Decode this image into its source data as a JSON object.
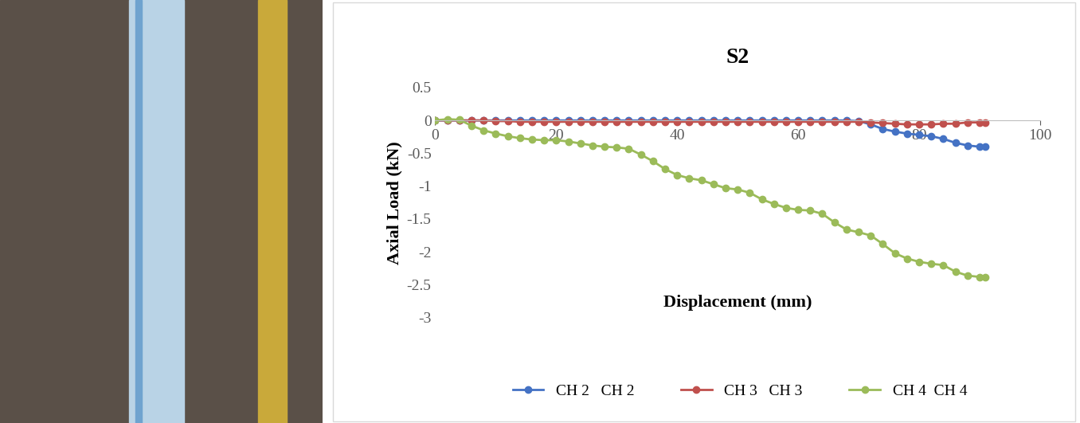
{
  "chart_data": {
    "type": "line",
    "title": "S2",
    "x_label": "Displacement (mm)",
    "y_label": "Axial Load (kN)",
    "x": [
      0,
      2,
      4,
      6,
      8,
      10,
      12,
      14,
      16,
      18,
      20,
      22,
      24,
      26,
      28,
      30,
      32,
      34,
      36,
      38,
      40,
      42,
      44,
      46,
      48,
      50,
      52,
      54,
      56,
      58,
      60,
      62,
      64,
      66,
      68,
      70,
      72,
      74,
      76,
      78,
      80,
      82,
      84,
      86,
      88,
      90,
      91
    ],
    "series": [
      {
        "name": "CH 2   CH 2",
        "color": "#4472C4",
        "marker": "circle",
        "values": [
          0,
          0,
          0,
          0,
          0,
          0,
          0,
          0,
          0,
          0,
          0,
          0,
          0,
          0,
          0,
          0,
          0,
          0,
          0,
          0,
          0,
          0,
          0,
          0,
          0,
          0,
          0,
          0,
          0,
          0,
          0,
          0,
          0,
          0,
          0,
          -0.01,
          -0.06,
          -0.13,
          -0.17,
          -0.2,
          -0.22,
          -0.24,
          -0.28,
          -0.34,
          -0.38,
          -0.4,
          -0.4
        ]
      },
      {
        "name": "CH 3   CH 3",
        "color": "#C0504D",
        "marker": "circle",
        "values": [
          0,
          0,
          0,
          0,
          0,
          -0.01,
          -0.01,
          -0.02,
          -0.02,
          -0.02,
          -0.02,
          -0.02,
          -0.02,
          -0.02,
          -0.02,
          -0.02,
          -0.02,
          -0.02,
          -0.02,
          -0.02,
          -0.02,
          -0.02,
          -0.02,
          -0.02,
          -0.02,
          -0.02,
          -0.02,
          -0.02,
          -0.02,
          -0.02,
          -0.02,
          -0.02,
          -0.02,
          -0.02,
          -0.02,
          -0.02,
          -0.03,
          -0.04,
          -0.05,
          -0.06,
          -0.06,
          -0.06,
          -0.05,
          -0.05,
          -0.03,
          -0.03,
          -0.04
        ]
      },
      {
        "name": "CH 4  CH 4",
        "color": "#9BBB59",
        "marker": "circle",
        "values": [
          0,
          0.02,
          0.01,
          -0.08,
          -0.15,
          -0.2,
          -0.24,
          -0.27,
          -0.29,
          -0.3,
          -0.3,
          -0.32,
          -0.35,
          -0.38,
          -0.4,
          -0.41,
          -0.43,
          -0.52,
          -0.62,
          -0.74,
          -0.83,
          -0.88,
          -0.91,
          -0.97,
          -1.03,
          -1.05,
          -1.1,
          -1.2,
          -1.27,
          -1.33,
          -1.36,
          -1.37,
          -1.42,
          -1.55,
          -1.66,
          -1.7,
          -1.75,
          -1.88,
          -2.02,
          -2.1,
          -2.15,
          -2.18,
          -2.2,
          -2.3,
          -2.36,
          -2.38,
          -2.39
        ]
      }
    ],
    "xlim": [
      0,
      100
    ],
    "xticks": [
      0,
      20,
      40,
      60,
      80,
      100
    ],
    "ylim": [
      -3,
      0.5
    ],
    "yticks": [
      -3,
      -2.5,
      -2,
      -1.5,
      -1,
      -0.5,
      0,
      0.5
    ],
    "grid": false,
    "legend": "bottom"
  }
}
